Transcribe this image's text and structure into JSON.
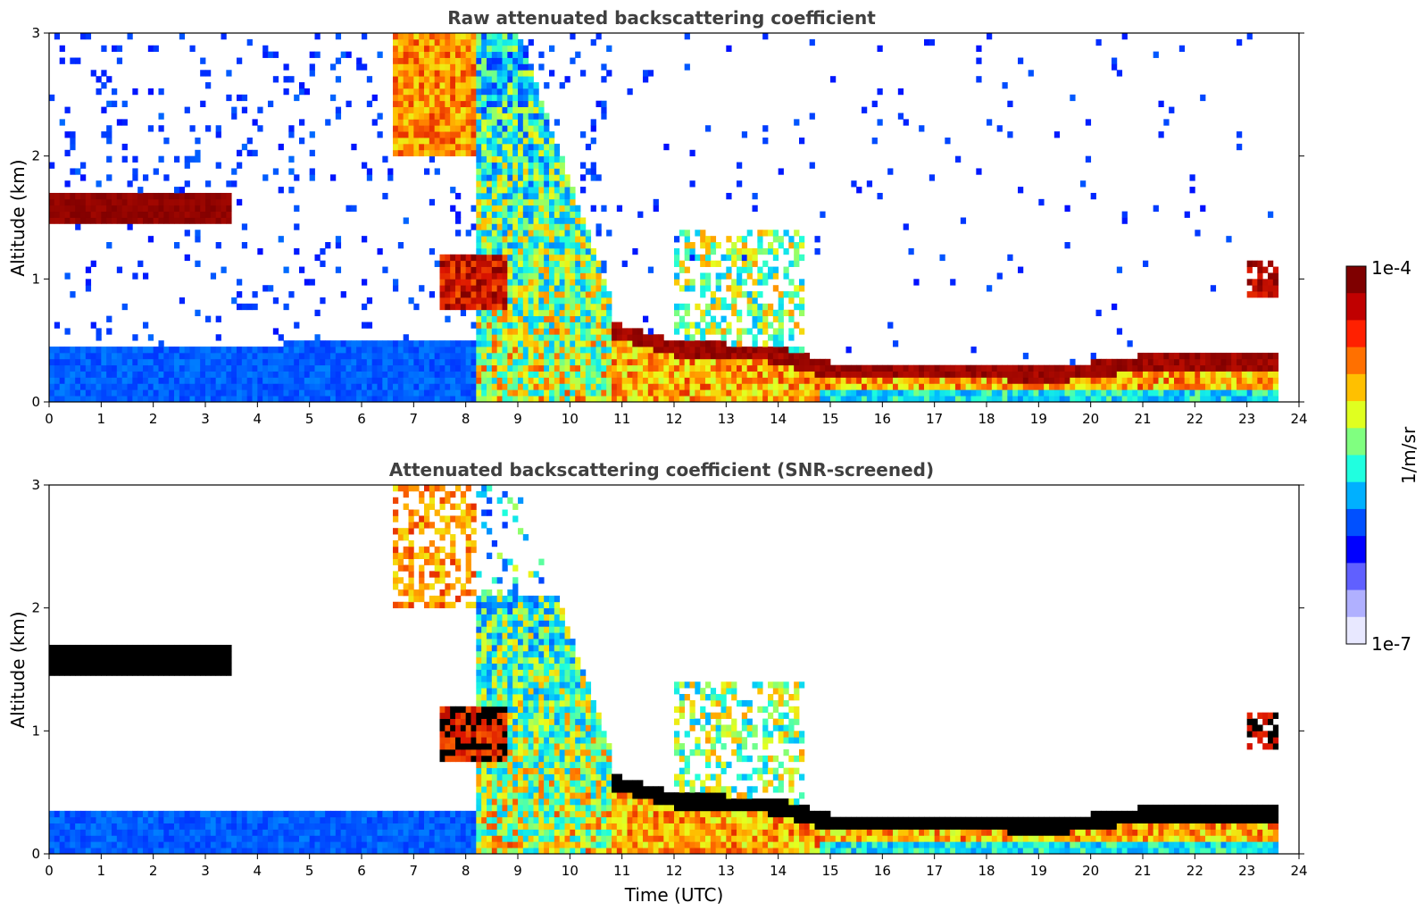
{
  "chart_data": [
    {
      "type": "heatmap",
      "title": "Raw attenuated backscattering coefficient",
      "xlabel": "",
      "ylabel": "Altitude (km)",
      "xlim": [
        0,
        24
      ],
      "ylim": [
        0,
        3
      ],
      "x_ticks": [
        "0",
        "1",
        "2",
        "3",
        "4",
        "5",
        "6",
        "7",
        "8",
        "9",
        "10",
        "11",
        "12",
        "13",
        "14",
        "15",
        "16",
        "17",
        "18",
        "19",
        "20",
        "21",
        "22",
        "23",
        "24"
      ],
      "y_ticks": [
        "0",
        "1",
        "2",
        "3"
      ],
      "data_end_time": 23.55,
      "features": {
        "cloud_layer": {
          "t_start": 0.0,
          "t_end": 3.5,
          "base_km": 1.45,
          "top_km": 1.72
        },
        "boundary_layer_top_km": [
          [
            0,
            0.45
          ],
          [
            9,
            0.5
          ],
          [
            10.8,
            0.65
          ],
          [
            12,
            0.5
          ],
          [
            14,
            0.45
          ],
          [
            15,
            0.32
          ],
          [
            19.5,
            0.3
          ],
          [
            21,
            0.38
          ],
          [
            23.55,
            0.38
          ]
        ],
        "plume": {
          "t_start": 6.6,
          "t_end": 10.8,
          "max_altitude_km": 3.0
        }
      }
    },
    {
      "type": "heatmap",
      "title": "Attenuated backscattering coefficient (SNR-screened)",
      "xlabel": "Time (UTC)",
      "ylabel": "Altitude (km)",
      "xlim": [
        0,
        24
      ],
      "ylim": [
        0,
        3
      ],
      "x_ticks": [
        "0",
        "1",
        "2",
        "3",
        "4",
        "5",
        "6",
        "7",
        "8",
        "9",
        "10",
        "11",
        "12",
        "13",
        "14",
        "15",
        "16",
        "17",
        "18",
        "19",
        "20",
        "21",
        "22",
        "23",
        "24"
      ],
      "y_ticks": [
        "0",
        "1",
        "2",
        "3"
      ],
      "data_end_time": 23.55,
      "features": {
        "cloud_layer": {
          "t_start": 0.0,
          "t_end": 3.5,
          "base_km": 1.45,
          "top_km": 1.72
        },
        "low_blue_layer_top_km": 0.33,
        "saturated_color": "#000000"
      }
    }
  ],
  "colorbar": {
    "label": "1/m/sr",
    "max_label": "1e-4",
    "min_label": "1e-7",
    "colors": [
      "#7f0000",
      "#c00000",
      "#ff2000",
      "#ff7000",
      "#ffc000",
      "#e0ff20",
      "#80ff80",
      "#20ffe0",
      "#00b0ff",
      "#0050ff",
      "#0000ff",
      "#6060ff",
      "#b0b0ff",
      "#e8e8ff"
    ]
  }
}
